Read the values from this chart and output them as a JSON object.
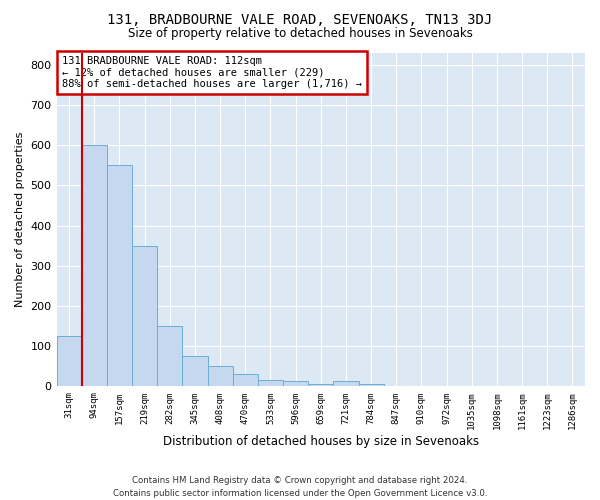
{
  "title": "131, BRADBOURNE VALE ROAD, SEVENOAKS, TN13 3DJ",
  "subtitle": "Size of property relative to detached houses in Sevenoaks",
  "xlabel": "Distribution of detached houses by size in Sevenoaks",
  "ylabel": "Number of detached properties",
  "annotation_line1": "131 BRADBOURNE VALE ROAD: 112sqm",
  "annotation_line2": "← 12% of detached houses are smaller (229)",
  "annotation_line3": "88% of semi-detached houses are larger (1,716) →",
  "footer_line1": "Contains HM Land Registry data © Crown copyright and database right 2024.",
  "footer_line2": "Contains public sector information licensed under the Open Government Licence v3.0.",
  "bar_color": "#c5d8f0",
  "bar_edge_color": "#6baed6",
  "bg_color": "#dce9f5",
  "grid_color": "#ffffff",
  "fig_bg_color": "#ffffff",
  "vline_color": "#cc0000",
  "vline_x": 0.5,
  "annotation_box_color": "#cc0000",
  "categories": [
    "31sqm",
    "94sqm",
    "157sqm",
    "219sqm",
    "282sqm",
    "345sqm",
    "408sqm",
    "470sqm",
    "533sqm",
    "596sqm",
    "659sqm",
    "721sqm",
    "784sqm",
    "847sqm",
    "910sqm",
    "972sqm",
    "1035sqm",
    "1098sqm",
    "1161sqm",
    "1223sqm",
    "1286sqm"
  ],
  "values": [
    125,
    600,
    550,
    350,
    150,
    75,
    50,
    32,
    15,
    13,
    5,
    13,
    5,
    0,
    0,
    0,
    0,
    0,
    0,
    0,
    0
  ],
  "ylim": [
    0,
    830
  ],
  "yticks": [
    0,
    100,
    200,
    300,
    400,
    500,
    600,
    700,
    800
  ]
}
